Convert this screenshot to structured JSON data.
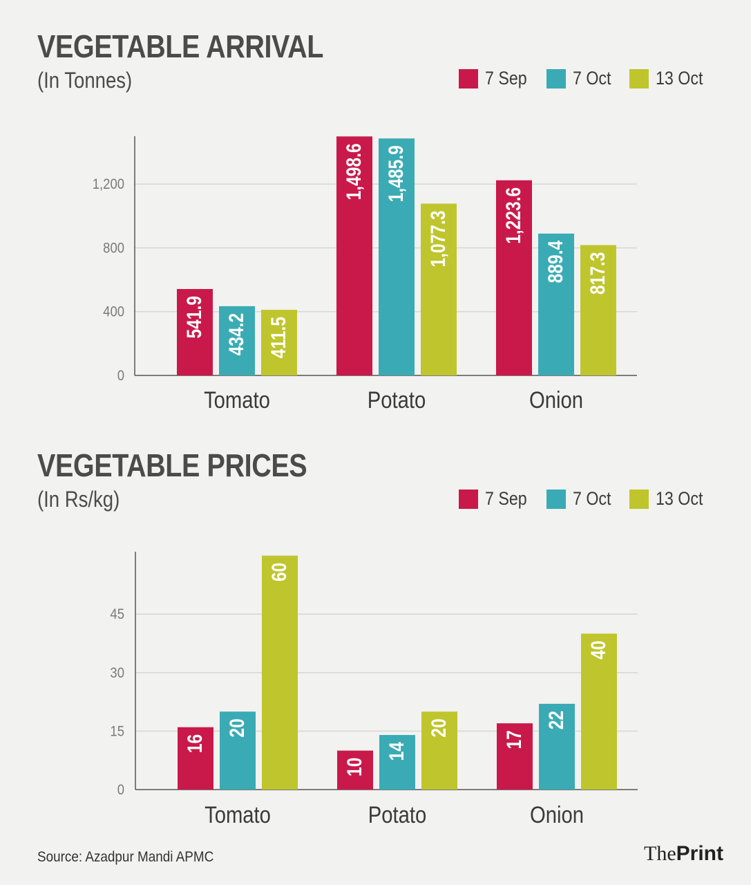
{
  "colors": {
    "s1": "#c9194a",
    "s2": "#3aabb4",
    "s3": "#bfc52c",
    "axis": "#555555",
    "grid": "#d6d6d6",
    "tick": "#7a7a7a"
  },
  "source": "Source: Azadpur Mandi APMC",
  "brand": {
    "part1": "The",
    "part2": "Print"
  },
  "chart_data": [
    {
      "type": "bar",
      "title": "VEGETABLE ARRIVAL",
      "subtitle": "(In Tonnes)",
      "categories": [
        "Tomato",
        "Potato",
        "Onion"
      ],
      "series": [
        {
          "name": "7 Sep",
          "values": [
            541.9,
            1498.6,
            1223.6
          ],
          "labels": [
            "541.9",
            "1,498.6",
            "1,223.6"
          ]
        },
        {
          "name": "7 Oct",
          "values": [
            434.2,
            1485.9,
            889.4
          ],
          "labels": [
            "434.2",
            "1,485.9",
            "889.4"
          ]
        },
        {
          "name": "13 Oct",
          "values": [
            411.5,
            1077.3,
            817.3
          ],
          "labels": [
            "411.5",
            "1,077.3",
            "817.3"
          ]
        }
      ],
      "yticks": [
        0,
        400,
        800,
        1200
      ],
      "ytick_labels": [
        "0",
        "400",
        "800",
        "1,200"
      ],
      "ylim": [
        0,
        1500
      ],
      "grid": true,
      "legend_position": "top-right"
    },
    {
      "type": "bar",
      "title": "VEGETABLE PRICES",
      "subtitle": "(In Rs/kg)",
      "categories": [
        "Tomato",
        "Potato",
        "Onion"
      ],
      "series": [
        {
          "name": "7 Sep",
          "values": [
            16,
            10,
            17
          ],
          "labels": [
            "16",
            "10",
            "17"
          ]
        },
        {
          "name": "7 Oct",
          "values": [
            20,
            14,
            22
          ],
          "labels": [
            "20",
            "14",
            "22"
          ]
        },
        {
          "name": "13 Oct",
          "values": [
            60,
            20,
            40
          ],
          "labels": [
            "60",
            "20",
            "40"
          ]
        }
      ],
      "yticks": [
        0,
        15,
        30,
        45
      ],
      "ytick_labels": [
        "0",
        "15",
        "30",
        "45"
      ],
      "ylim": [
        0,
        61
      ],
      "grid": true,
      "legend_position": "top-right"
    }
  ]
}
